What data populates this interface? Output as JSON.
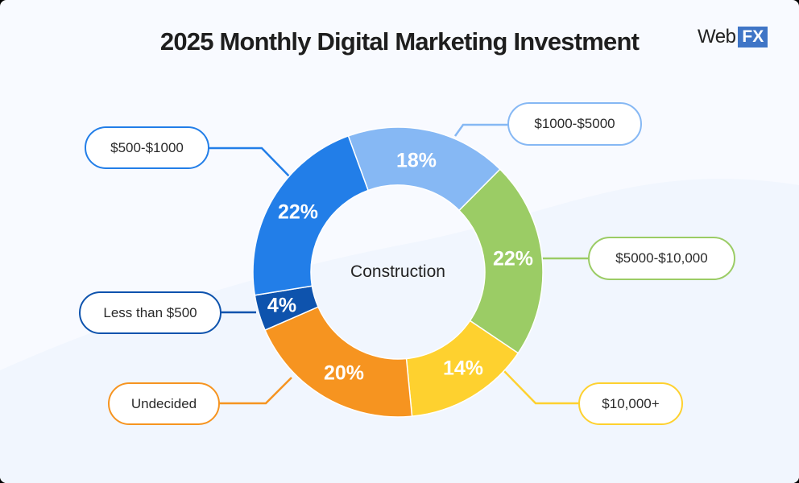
{
  "header": {
    "title": "2025 Monthly Digital Marketing Investment",
    "logo": {
      "web": "Web",
      "fx": "FX"
    }
  },
  "center_label": "Construction",
  "colors": {
    "background": "#f8faff",
    "less_than_500": "#0e53ad",
    "500_1000": "#227ee8",
    "1000_5000": "#86b8f4",
    "5000_10000": "#9bcc65",
    "10000_plus": "#fed12f",
    "undecided": "#f69420"
  },
  "chart_data": {
    "type": "pie",
    "subtype": "donut",
    "title": "2025 Monthly Digital Marketing Investment",
    "center_text": "Construction",
    "categories": [
      "$1000-$5000",
      "$5000-$10,000",
      "$10,000+",
      "Undecided",
      "Less than $500",
      "$500-$1000"
    ],
    "values": [
      18,
      22,
      14,
      20,
      4,
      22
    ],
    "labels": [
      "18%",
      "22%",
      "14%",
      "20%",
      "4%",
      "22%"
    ],
    "colors": [
      "#86b8f4",
      "#9bcc65",
      "#fed12f",
      "#f69420",
      "#0e53ad",
      "#227ee8"
    ],
    "unit": "%"
  },
  "callouts": [
    {
      "label": "$500-$1000",
      "pct": "22%"
    },
    {
      "label": "$1000-$5000",
      "pct": "18%"
    },
    {
      "label": "$5000-$10,000",
      "pct": "22%"
    },
    {
      "label": "Less than $500",
      "pct": "4%"
    },
    {
      "label": "Undecided",
      "pct": "20%"
    },
    {
      "label": "$10,000+",
      "pct": "14%"
    }
  ]
}
